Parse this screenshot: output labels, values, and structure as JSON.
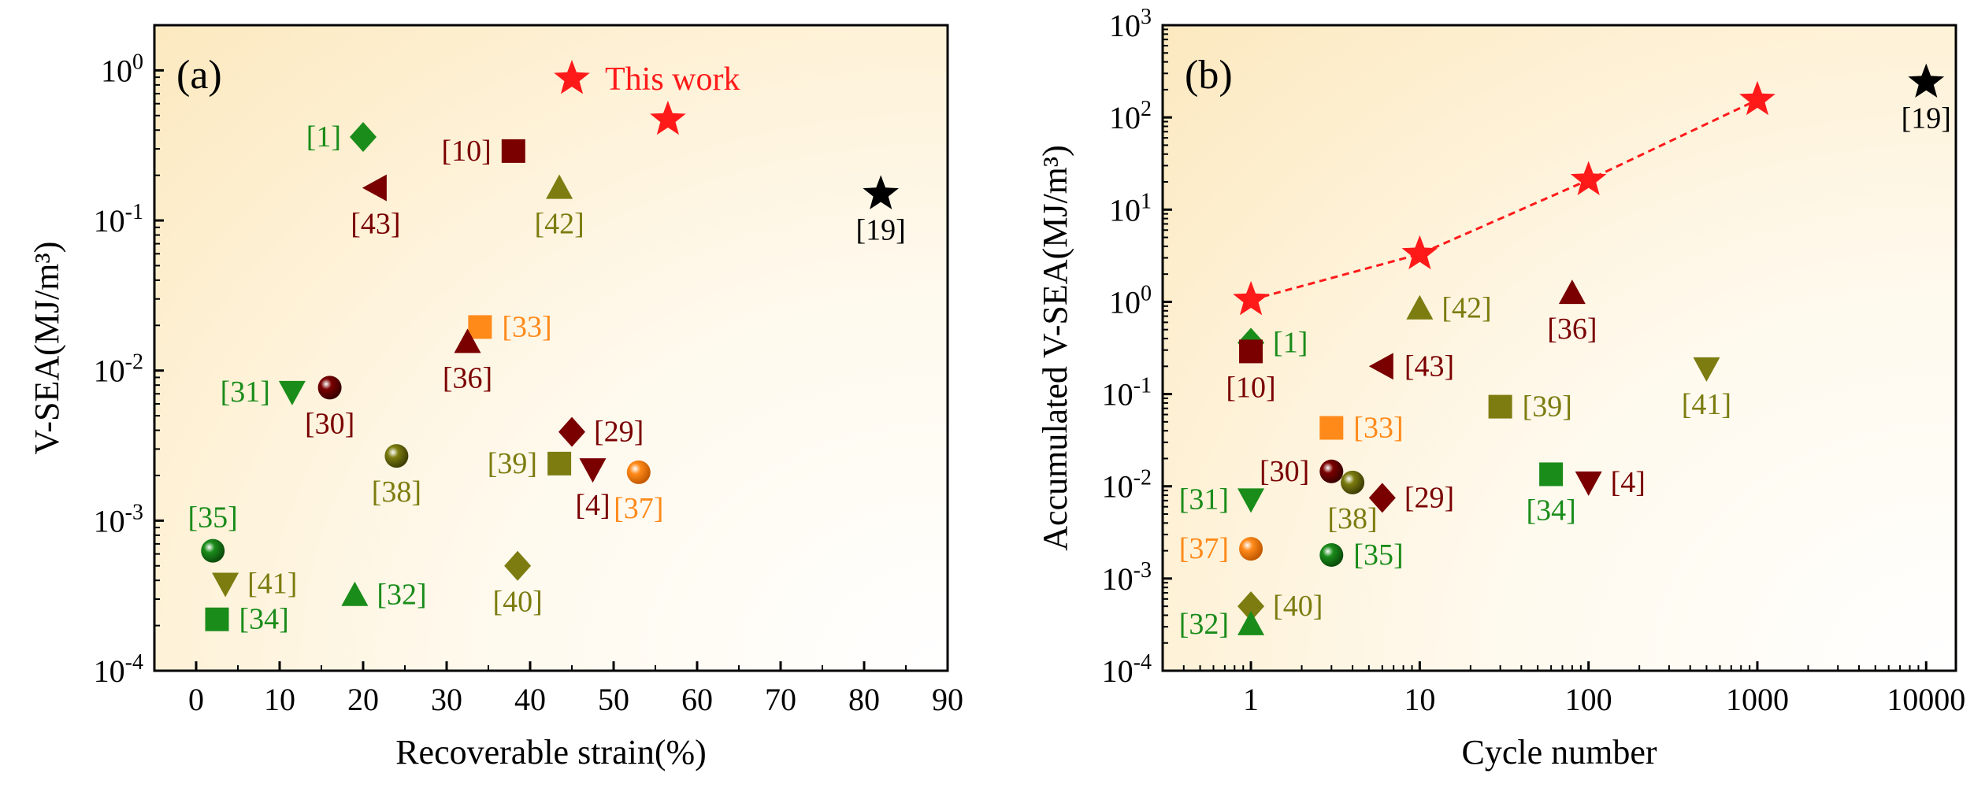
{
  "colors": {
    "red": "#ff1a1a",
    "black": "#000000",
    "green": "#1a8c1a",
    "darkred": "#7a0000",
    "olive": "#7c7c10",
    "orange": "#ff8a1a",
    "label_green": "#1a8c1a",
    "label_darkred": "#7a0000",
    "label_olive": "#7c7c10",
    "label_orange": "#ff8a1a",
    "label_red": "#ff1a1a",
    "label_black": "#000000",
    "bg_tint": "#fdeecb"
  },
  "chart_data": [
    {
      "type": "scatter",
      "panel": "(a)",
      "xlabel": "Recoverable strain(%)",
      "ylabel": "V-SEA(MJ/m³)",
      "ylog": true,
      "xlim": [
        -5,
        90
      ],
      "ylim": [
        0.0001,
        2
      ],
      "xticks": [
        "0",
        "10",
        "20",
        "30",
        "40",
        "50",
        "60",
        "70",
        "80",
        "90"
      ],
      "yticks": [
        {
          "base": "10",
          "exp": "-4"
        },
        {
          "base": "10",
          "exp": "-3"
        },
        {
          "base": "10",
          "exp": "-2"
        },
        {
          "base": "10",
          "exp": "-1"
        },
        {
          "base": "10",
          "exp": "0"
        }
      ],
      "legend": {
        "label": "This work",
        "marker": "star",
        "color": "red"
      },
      "points": [
        {
          "label": "[1]",
          "x": 20,
          "y": 0.36,
          "marker": "diamond",
          "color": "green",
          "lpos": "left"
        },
        {
          "label": "[10]",
          "x": 38,
          "y": 0.29,
          "marker": "square",
          "color": "darkred",
          "lpos": "left"
        },
        {
          "label": "[43]",
          "x": 21.5,
          "y": 0.165,
          "marker": "tri-left",
          "color": "darkred",
          "lpos": "below"
        },
        {
          "label": "[42]",
          "x": 43.5,
          "y": 0.165,
          "marker": "tri-up",
          "color": "olive",
          "lpos": "below"
        },
        {
          "label": "[19]",
          "x": 82,
          "y": 0.15,
          "marker": "star",
          "color": "black",
          "lpos": "below"
        },
        {
          "label": "",
          "x": 56.5,
          "y": 0.47,
          "marker": "star",
          "color": "red",
          "lpos": "none"
        },
        {
          "label": "[33]",
          "x": 34,
          "y": 0.0195,
          "marker": "square",
          "color": "orange",
          "lpos": "right"
        },
        {
          "label": "[36]",
          "x": 32.5,
          "y": 0.0155,
          "marker": "tri-up",
          "color": "darkred",
          "lpos": "below"
        },
        {
          "label": "[31]",
          "x": 11.5,
          "y": 0.0072,
          "marker": "tri-down",
          "color": "green",
          "lpos": "left"
        },
        {
          "label": "[30]",
          "x": 16,
          "y": 0.0077,
          "marker": "sphere",
          "color": "darkred",
          "lpos": "below"
        },
        {
          "label": "[29]",
          "x": 45,
          "y": 0.0039,
          "marker": "diamond",
          "color": "darkred",
          "lpos": "right"
        },
        {
          "label": "[38]",
          "x": 24,
          "y": 0.0027,
          "marker": "sphere",
          "color": "olive",
          "lpos": "below"
        },
        {
          "label": "[39]",
          "x": 43.5,
          "y": 0.0024,
          "marker": "square",
          "color": "olive",
          "lpos": "left"
        },
        {
          "label": "[4]",
          "x": 47.5,
          "y": 0.0022,
          "marker": "tri-down",
          "color": "darkred",
          "lpos": "below"
        },
        {
          "label": "[37]",
          "x": 53,
          "y": 0.0021,
          "marker": "sphere",
          "color": "orange",
          "lpos": "below"
        },
        {
          "label": "[35]",
          "x": 2,
          "y": 0.00063,
          "marker": "sphere",
          "color": "green",
          "lpos": "above"
        },
        {
          "label": "[40]",
          "x": 38.5,
          "y": 0.0005,
          "marker": "diamond",
          "color": "olive",
          "lpos": "below"
        },
        {
          "label": "[41]",
          "x": 3.5,
          "y": 0.00038,
          "marker": "tri-down",
          "color": "olive",
          "lpos": "right"
        },
        {
          "label": "[32]",
          "x": 19,
          "y": 0.00032,
          "marker": "tri-up",
          "color": "green",
          "lpos": "right"
        },
        {
          "label": "[34]",
          "x": 2.5,
          "y": 0.00022,
          "marker": "square",
          "color": "green",
          "lpos": "right"
        }
      ]
    },
    {
      "type": "scatter",
      "panel": "(b)",
      "xlabel": "Cycle number",
      "ylabel": "Accumulated V-SEA(MJ/m³)",
      "xlog": true,
      "ylog": true,
      "xlim": [
        0.3,
        15000
      ],
      "ylim": [
        0.0001,
        1000
      ],
      "xticks": [
        "1",
        "10",
        "100",
        "1000",
        "10000"
      ],
      "yticks": [
        {
          "base": "10",
          "exp": "-4"
        },
        {
          "base": "10",
          "exp": "-3"
        },
        {
          "base": "10",
          "exp": "-2"
        },
        {
          "base": "10",
          "exp": "-1"
        },
        {
          "base": "10",
          "exp": "0"
        },
        {
          "base": "10",
          "exp": "1"
        },
        {
          "base": "10",
          "exp": "2"
        },
        {
          "base": "10",
          "exp": "3"
        }
      ],
      "yticks_decimal": [
        "1.0",
        "1",
        "2",
        "3"
      ],
      "line": {
        "x": [
          1,
          10,
          100,
          1000
        ],
        "y": [
          1.05,
          3.3,
          21,
          155
        ],
        "color": "red",
        "marker": "star"
      },
      "points": [
        {
          "label": "[19]",
          "x": 10000,
          "y": 240,
          "marker": "star",
          "color": "black",
          "lpos": "below"
        },
        {
          "label": "[36]",
          "x": 80,
          "y": 1.25,
          "marker": "tri-up",
          "color": "darkred",
          "lpos": "below"
        },
        {
          "label": "[42]",
          "x": 10,
          "y": 0.85,
          "marker": "tri-up",
          "color": "olive",
          "lpos": "right"
        },
        {
          "label": "[1]",
          "x": 1,
          "y": 0.36,
          "marker": "diamond",
          "color": "green",
          "lpos": "right"
        },
        {
          "label": "[10]",
          "x": 1,
          "y": 0.29,
          "marker": "square",
          "color": "darkred",
          "lpos": "below"
        },
        {
          "label": "[43]",
          "x": 6,
          "y": 0.2,
          "marker": "tri-left",
          "color": "darkred",
          "lpos": "right"
        },
        {
          "label": "[41]",
          "x": 500,
          "y": 0.19,
          "marker": "tri-down",
          "color": "olive",
          "lpos": "below"
        },
        {
          "label": "[39]",
          "x": 30,
          "y": 0.073,
          "marker": "square",
          "color": "olive",
          "lpos": "right"
        },
        {
          "label": "[33]",
          "x": 3,
          "y": 0.043,
          "marker": "square",
          "color": "orange",
          "lpos": "right"
        },
        {
          "label": "[30]",
          "x": 3,
          "y": 0.0145,
          "marker": "sphere",
          "color": "darkred",
          "lpos": "left"
        },
        {
          "label": "[38]",
          "x": 4,
          "y": 0.011,
          "marker": "sphere",
          "color": "olive",
          "lpos": "below"
        },
        {
          "label": "[34]",
          "x": 60,
          "y": 0.0135,
          "marker": "square",
          "color": "green",
          "lpos": "below"
        },
        {
          "label": "[4]",
          "x": 100,
          "y": 0.011,
          "marker": "tri-down",
          "color": "darkred",
          "lpos": "right"
        },
        {
          "label": "[29]",
          "x": 6,
          "y": 0.0075,
          "marker": "diamond",
          "color": "darkred",
          "lpos": "right"
        },
        {
          "label": "[31]",
          "x": 1,
          "y": 0.0072,
          "marker": "tri-down",
          "color": "green",
          "lpos": "left"
        },
        {
          "label": "[37]",
          "x": 1,
          "y": 0.0021,
          "marker": "sphere",
          "color": "orange",
          "lpos": "left"
        },
        {
          "label": "[35]",
          "x": 3,
          "y": 0.0018,
          "marker": "sphere",
          "color": "green",
          "lpos": "right"
        },
        {
          "label": "[40]",
          "x": 1,
          "y": 0.0005,
          "marker": "diamond",
          "color": "olive",
          "lpos": "right"
        },
        {
          "label": "[32]",
          "x": 1,
          "y": 0.00032,
          "marker": "tri-up",
          "color": "green",
          "lpos": "left"
        }
      ]
    }
  ]
}
